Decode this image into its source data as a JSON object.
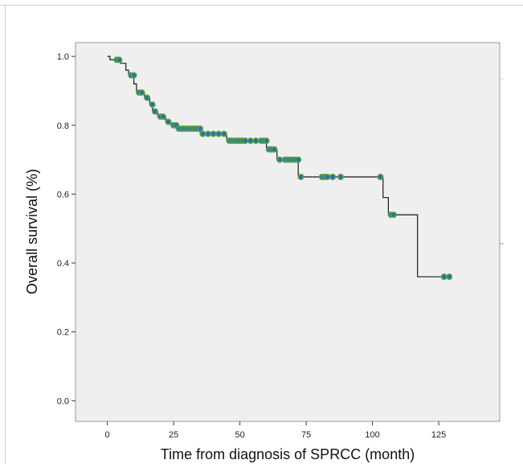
{
  "colors": {
    "plot_background": "#efefef",
    "frame": "#9a9a9a",
    "axis": "#333333",
    "curve": "#1a1a1a",
    "censor_fill": "#2f6db3",
    "censor_stroke": "#5aa83a"
  },
  "chart_data": {
    "type": "line",
    "subtype": "kaplan-meier step",
    "title": "",
    "xlabel": "Time from diagnosis of SPRCC (month)",
    "ylabel": "Overall survival (%)",
    "xlim": [
      -12,
      148
    ],
    "ylim": [
      -0.06,
      1.04
    ],
    "x_ticks": [
      0,
      25,
      50,
      75,
      100,
      125
    ],
    "x_tick_labels": [
      "0",
      "25",
      "50",
      "75",
      "100",
      "125"
    ],
    "y_ticks": [
      0.0,
      0.2,
      0.4,
      0.6,
      0.8,
      1.0
    ],
    "y_tick_labels": [
      "0.0",
      "0.2",
      "0.4",
      "0.6",
      "0.8",
      "1.0"
    ],
    "grid": false,
    "legend": "none",
    "step_curve": [
      [
        0,
        1.0
      ],
      [
        1,
        0.99
      ],
      [
        5,
        0.98
      ],
      [
        7,
        0.96
      ],
      [
        8,
        0.945
      ],
      [
        10,
        0.92
      ],
      [
        11,
        0.895
      ],
      [
        14,
        0.88
      ],
      [
        16,
        0.86
      ],
      [
        17,
        0.84
      ],
      [
        19,
        0.825
      ],
      [
        22,
        0.81
      ],
      [
        24,
        0.8
      ],
      [
        26,
        0.79
      ],
      [
        35,
        0.775
      ],
      [
        45,
        0.755
      ],
      [
        60,
        0.73
      ],
      [
        64,
        0.7
      ],
      [
        72,
        0.65
      ],
      [
        104,
        0.59
      ],
      [
        106,
        0.54
      ],
      [
        117,
        0.36
      ],
      [
        130,
        0.36
      ]
    ],
    "censored_marks": [
      [
        3.5,
        0.99
      ],
      [
        4.5,
        0.99
      ],
      [
        9,
        0.945
      ],
      [
        10,
        0.945
      ],
      [
        12,
        0.895
      ],
      [
        13,
        0.895
      ],
      [
        15,
        0.88
      ],
      [
        17,
        0.86
      ],
      [
        18,
        0.84
      ],
      [
        20,
        0.825
      ],
      [
        21,
        0.825
      ],
      [
        23,
        0.81
      ],
      [
        25,
        0.8
      ],
      [
        26,
        0.8
      ],
      [
        27,
        0.79
      ],
      [
        28,
        0.79
      ],
      [
        29,
        0.79
      ],
      [
        30,
        0.79
      ],
      [
        31,
        0.79
      ],
      [
        32,
        0.79
      ],
      [
        33,
        0.79
      ],
      [
        34,
        0.79
      ],
      [
        35,
        0.79
      ],
      [
        36,
        0.775
      ],
      [
        38,
        0.775
      ],
      [
        40,
        0.775
      ],
      [
        42,
        0.775
      ],
      [
        44,
        0.775
      ],
      [
        46,
        0.755
      ],
      [
        47,
        0.755
      ],
      [
        48,
        0.755
      ],
      [
        49,
        0.755
      ],
      [
        50,
        0.755
      ],
      [
        51,
        0.755
      ],
      [
        52,
        0.755
      ],
      [
        54,
        0.755
      ],
      [
        56,
        0.755
      ],
      [
        58,
        0.755
      ],
      [
        59,
        0.755
      ],
      [
        60,
        0.755
      ],
      [
        61,
        0.73
      ],
      [
        62,
        0.73
      ],
      [
        63,
        0.73
      ],
      [
        65,
        0.7
      ],
      [
        67,
        0.7
      ],
      [
        68,
        0.7
      ],
      [
        69,
        0.7
      ],
      [
        70,
        0.7
      ],
      [
        71,
        0.7
      ],
      [
        72,
        0.7
      ],
      [
        73,
        0.65
      ],
      [
        81,
        0.65
      ],
      [
        82,
        0.65
      ],
      [
        83,
        0.65
      ],
      [
        85,
        0.65
      ],
      [
        88,
        0.65
      ],
      [
        103,
        0.65
      ],
      [
        107,
        0.54
      ],
      [
        108,
        0.54
      ],
      [
        127,
        0.36
      ],
      [
        129,
        0.36
      ]
    ]
  }
}
